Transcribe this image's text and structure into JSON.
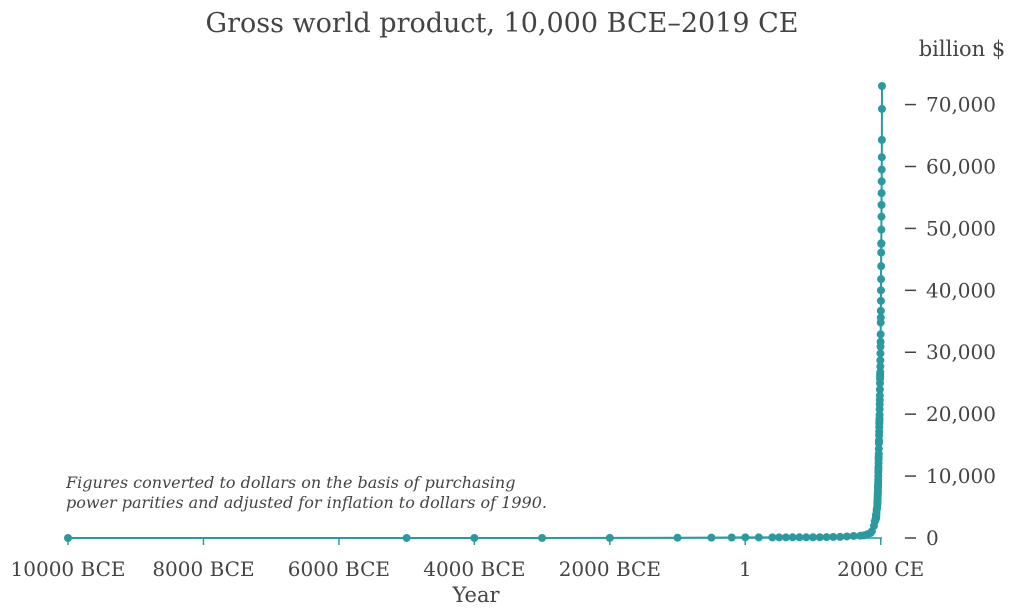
{
  "chart_data": {
    "type": "line",
    "title": "Gross world product, 10,000 BCE–2019 CE",
    "xlabel": "Year",
    "ylabel": "billion $",
    "xlim": [
      -10000,
      2019
    ],
    "ylim": [
      0,
      73000
    ],
    "x_ticks": [
      {
        "value": -10000,
        "label": "10000 BCE"
      },
      {
        "value": -8000,
        "label": "8000 BCE"
      },
      {
        "value": -6000,
        "label": "6000 BCE"
      },
      {
        "value": -4000,
        "label": "4000 BCE"
      },
      {
        "value": -2000,
        "label": "2000 BCE"
      },
      {
        "value": 0,
        "label": "1"
      },
      {
        "value": 2000,
        "label": "2000 CE"
      }
    ],
    "y_ticks": [
      {
        "value": 0,
        "label": "0"
      },
      {
        "value": 10000,
        "label": "10,000"
      },
      {
        "value": 20000,
        "label": "20,000"
      },
      {
        "value": 30000,
        "label": "30,000"
      },
      {
        "value": 40000,
        "label": "40,000"
      },
      {
        "value": 50000,
        "label": "50,000"
      },
      {
        "value": 60000,
        "label": "60,000"
      },
      {
        "value": 70000,
        "label": "70,000"
      }
    ],
    "annotation": "Figures converted to dollars on the basis of purchasing power parities and adjusted for inflation to dollars of 1990.",
    "color": "#2a9aa0",
    "series": [
      {
        "name": "Gross world product",
        "x": [
          -10000,
          -5000,
          -4000,
          -3000,
          -2000,
          -1000,
          -500,
          -200,
          1,
          200,
          400,
          500,
          600,
          700,
          800,
          900,
          1000,
          1100,
          1200,
          1300,
          1400,
          1500,
          1600,
          1700,
          1750,
          1800,
          1850,
          1870,
          1900,
          1913,
          1920,
          1925,
          1929,
          1930,
          1932,
          1935,
          1938,
          1940,
          1945,
          1950,
          1951,
          1952,
          1953,
          1954,
          1955,
          1956,
          1957,
          1958,
          1959,
          1960,
          1961,
          1962,
          1963,
          1964,
          1965,
          1966,
          1967,
          1968,
          1969,
          1970,
          1971,
          1972,
          1973,
          1974,
          1975,
          1976,
          1977,
          1978,
          1979,
          1980,
          1981,
          1982,
          1983,
          1984,
          1985,
          1986,
          1987,
          1988,
          1989,
          1990,
          1991,
          1992,
          1993,
          1994,
          1995,
          1996,
          1997,
          1998,
          1999,
          2000,
          2001,
          2002,
          2003,
          2004,
          2005,
          2006,
          2007,
          2008,
          2009,
          2010,
          2011,
          2012,
          2013,
          2014,
          2015,
          2016,
          2017,
          2018,
          2019
        ],
        "values": [
          2,
          5,
          7,
          9,
          12,
          50,
          60,
          80,
          105,
          102,
          102,
          105,
          108,
          112,
          115,
          118,
          121,
          130,
          150,
          170,
          180,
          248,
          329,
          371,
          420,
          600,
          800,
          1100,
          1970,
          2700,
          2800,
          3100,
          3700,
          3600,
          3200,
          3500,
          4000,
          4500,
          4800,
          5336,
          5600,
          5850,
          6100,
          6300,
          6650,
          6900,
          7200,
          7400,
          7750,
          8200,
          8500,
          8950,
          9400,
          10000,
          10600,
          11100,
          11500,
          12100,
          12700,
          13100,
          13600,
          14400,
          15300,
          15600,
          15800,
          16600,
          17200,
          17900,
          18500,
          18800,
          19100,
          19300,
          19900,
          20800,
          21600,
          22300,
          23000,
          24000,
          25000,
          25700,
          26100,
          26500,
          26800,
          27700,
          28700,
          29800,
          30900,
          31700,
          32900,
          34800,
          35600,
          36700,
          38300,
          40000,
          41800,
          43900,
          46100,
          47500,
          47600,
          49800,
          51900,
          53800,
          55700,
          57600,
          59500,
          61500,
          64300,
          69300,
          73000
        ]
      }
    ]
  }
}
